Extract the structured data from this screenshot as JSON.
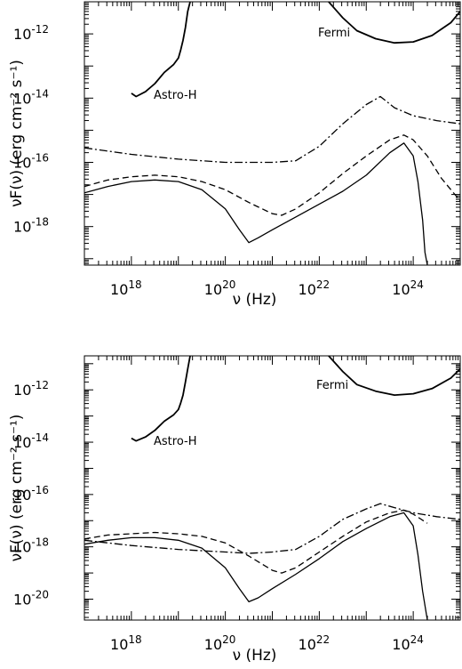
{
  "chart_data": [
    {
      "type": "line",
      "xlabel": "ν (Hz)",
      "ylabel": "νF(ν) (erg cm⁻² s⁻¹)",
      "xscale": "log",
      "yscale": "log",
      "xlim_log10": [
        17,
        25
      ],
      "ylim_log10": [
        -19.2,
        -11.0
      ],
      "xticks_log10": [
        18,
        20,
        22,
        24
      ],
      "yticks_log10": [
        -12,
        -14,
        -16,
        -18
      ],
      "annotations": [
        "Astro-H",
        "Fermi"
      ],
      "series": [
        {
          "style": "solid",
          "log10x": [
            17,
            17.5,
            18,
            18.5,
            19,
            19.5,
            20,
            20.3,
            20.5,
            20.7,
            21,
            21.5,
            22,
            22.5,
            23,
            23.5,
            23.8,
            24,
            24.1,
            24.2,
            24.25,
            24.3
          ],
          "log10y": [
            -16.95,
            -16.75,
            -16.6,
            -16.55,
            -16.6,
            -16.85,
            -17.45,
            -18.1,
            -18.5,
            -18.35,
            -18.1,
            -17.7,
            -17.3,
            -16.9,
            -16.4,
            -15.7,
            -15.4,
            -15.8,
            -16.6,
            -17.8,
            -18.8,
            -19.2
          ]
        },
        {
          "style": "dashed",
          "log10x": [
            17,
            17.5,
            18,
            18.5,
            19,
            19.5,
            20,
            20.5,
            21,
            21.2,
            21.5,
            22,
            22.5,
            23,
            23.5,
            23.8,
            24,
            24.3,
            24.6,
            25
          ],
          "log10y": [
            -16.75,
            -16.55,
            -16.45,
            -16.4,
            -16.45,
            -16.6,
            -16.85,
            -17.25,
            -17.6,
            -17.65,
            -17.45,
            -16.95,
            -16.35,
            -15.8,
            -15.3,
            -15.15,
            -15.3,
            -15.8,
            -16.5,
            -17.2
          ]
        },
        {
          "style": "dashdot",
          "log10x": [
            17,
            18,
            19,
            20,
            21,
            21.5,
            22,
            22.5,
            23,
            23.3,
            23.6,
            24,
            24.5,
            25
          ],
          "log10y": [
            -15.55,
            -15.75,
            -15.9,
            -16.0,
            -16.0,
            -15.95,
            -15.5,
            -14.8,
            -14.2,
            -13.95,
            -14.3,
            -14.55,
            -14.7,
            -14.8
          ]
        },
        {
          "style": "sensitivity",
          "label": "Astro-H",
          "log10x": [
            18,
            18.1,
            18.3,
            18.5,
            18.7,
            18.9,
            19.0,
            19.05,
            19.1,
            19.15,
            19.2,
            19.25
          ],
          "log10y": [
            -13.85,
            -13.95,
            -13.8,
            -13.55,
            -13.2,
            -12.95,
            -12.75,
            -12.5,
            -12.2,
            -11.8,
            -11.3,
            -11.0
          ]
        },
        {
          "style": "sensitivity",
          "label": "Fermi",
          "log10x": [
            22.2,
            22.5,
            22.8,
            23.2,
            23.6,
            24.0,
            24.4,
            24.8,
            25.0
          ],
          "log10y": [
            -11.0,
            -11.5,
            -11.9,
            -12.15,
            -12.28,
            -12.25,
            -12.05,
            -11.65,
            -11.3
          ]
        }
      ]
    },
    {
      "type": "line",
      "xlabel": "ν (Hz)",
      "ylabel": "νF(ν) (erg cm⁻² s⁻¹)",
      "xscale": "log",
      "yscale": "log",
      "xlim_log10": [
        17,
        25
      ],
      "ylim_log10": [
        -20.8,
        -10.7
      ],
      "xticks_log10": [
        18,
        20,
        22,
        24
      ],
      "yticks_log10": [
        -12,
        -14,
        -16,
        -18,
        -20
      ],
      "annotations": [
        "Astro-H",
        "Fermi"
      ],
      "series": [
        {
          "style": "solid",
          "log10x": [
            17,
            17.5,
            18,
            18.5,
            19,
            19.5,
            20,
            20.3,
            20.5,
            20.7,
            21,
            21.5,
            22,
            22.5,
            23,
            23.5,
            23.8,
            24,
            24.1,
            24.2,
            24.3
          ],
          "log10y": [
            -17.9,
            -17.75,
            -17.65,
            -17.65,
            -17.75,
            -18.05,
            -18.8,
            -19.6,
            -20.1,
            -19.95,
            -19.6,
            -19.05,
            -18.45,
            -17.8,
            -17.3,
            -16.85,
            -16.7,
            -17.2,
            -18.3,
            -19.7,
            -20.8
          ]
        },
        {
          "style": "dashed",
          "log10x": [
            17,
            17.5,
            18,
            18.5,
            19,
            19.5,
            20,
            20.5,
            21,
            21.2,
            21.5,
            22,
            22.5,
            23,
            23.5,
            23.8,
            24,
            24.3
          ],
          "log10y": [
            -17.7,
            -17.55,
            -17.5,
            -17.45,
            -17.5,
            -17.6,
            -17.85,
            -18.35,
            -18.9,
            -19.0,
            -18.8,
            -18.2,
            -17.6,
            -17.05,
            -16.7,
            -16.6,
            -16.75,
            -17.1
          ]
        },
        {
          "style": "dashdot",
          "log10x": [
            17,
            18,
            19,
            20,
            20.5,
            21,
            21.5,
            22,
            22.5,
            23,
            23.3,
            23.6,
            24,
            24.5,
            25
          ],
          "log10y": [
            -17.75,
            -17.95,
            -18.1,
            -18.2,
            -18.25,
            -18.2,
            -18.1,
            -17.6,
            -16.95,
            -16.55,
            -16.35,
            -16.5,
            -16.7,
            -16.85,
            -16.95
          ]
        },
        {
          "style": "sensitivity",
          "label": "Astro-H",
          "log10x": [
            18,
            18.1,
            18.3,
            18.5,
            18.7,
            18.9,
            19.0,
            19.05,
            19.1,
            19.15,
            19.2,
            19.25
          ],
          "log10y": [
            -13.85,
            -13.95,
            -13.8,
            -13.55,
            -13.2,
            -12.95,
            -12.75,
            -12.5,
            -12.2,
            -11.7,
            -11.2,
            -10.7
          ]
        },
        {
          "style": "sensitivity",
          "label": "Fermi",
          "log10x": [
            22.2,
            22.5,
            22.8,
            23.2,
            23.6,
            24.0,
            24.4,
            24.8,
            25.0
          ],
          "log10y": [
            -10.7,
            -11.3,
            -11.8,
            -12.05,
            -12.2,
            -12.15,
            -11.95,
            -11.55,
            -11.2
          ]
        }
      ]
    }
  ]
}
